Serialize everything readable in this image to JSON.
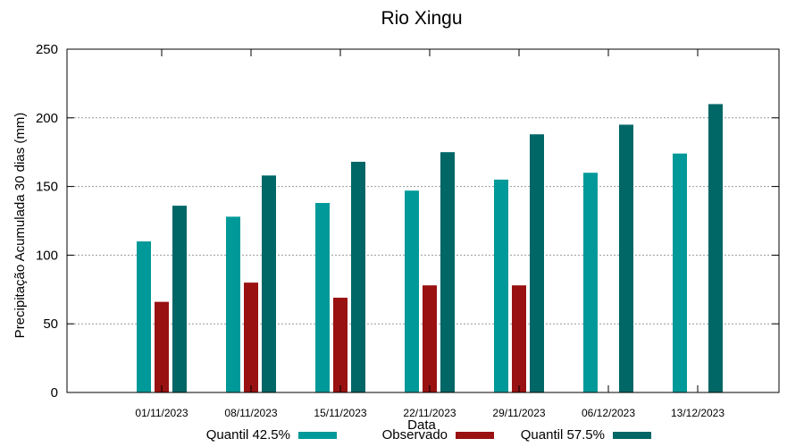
{
  "chart_data": {
    "type": "bar",
    "title": "Rio Xingu",
    "xlabel": "Data",
    "ylabel": "Precipitação Acumulada 30 dias (mm)",
    "ylim": [
      0,
      250
    ],
    "yticks": [
      0,
      50,
      100,
      150,
      200,
      250
    ],
    "grid": true,
    "legend_position": "bottom",
    "categories": [
      "01/11/2023",
      "08/11/2023",
      "15/11/2023",
      "22/11/2023",
      "29/11/2023",
      "06/12/2023",
      "13/12/2023"
    ],
    "series": [
      {
        "name": "Quantil 42.5%",
        "color": "#009999",
        "values": [
          110,
          128,
          138,
          147,
          155,
          160,
          174
        ]
      },
      {
        "name": "Observado",
        "color": "#991111",
        "values": [
          66,
          80,
          69,
          78,
          78,
          null,
          null
        ]
      },
      {
        "name": "Quantil 57.5%",
        "color": "#006666",
        "values": [
          136,
          158,
          168,
          175,
          188,
          195,
          210
        ]
      }
    ]
  }
}
